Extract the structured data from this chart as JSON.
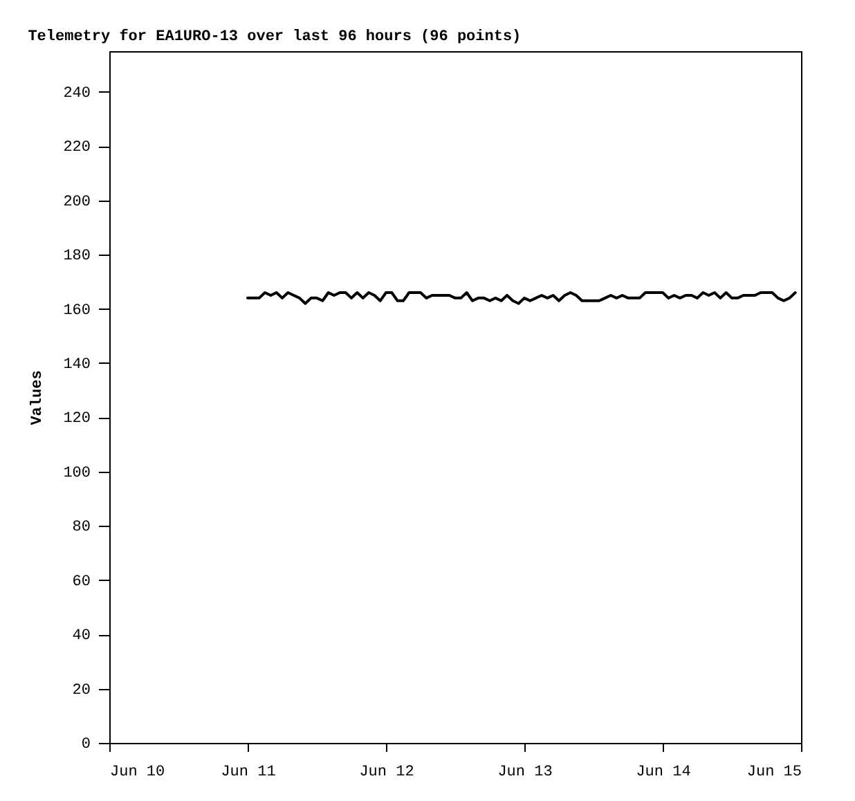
{
  "chart_data": {
    "type": "line",
    "title": "Telemetry for EA1URO-13 over last 96 hours (96 points)",
    "ylabel": "Values",
    "x": [
      "--06-11T00:00",
      "--06-11T01:00",
      "--06-11T02:00",
      "--06-11T03:00",
      "--06-11T04:00",
      "--06-11T05:00",
      "--06-11T06:00",
      "--06-11T07:00",
      "--06-11T08:00",
      "--06-11T09:00",
      "--06-11T10:00",
      "--06-11T11:00",
      "--06-11T12:00",
      "--06-11T13:00",
      "--06-11T14:00",
      "--06-11T15:00",
      "--06-11T16:00",
      "--06-11T17:00",
      "--06-11T18:00",
      "--06-11T19:00",
      "--06-11T20:00",
      "--06-11T21:00",
      "--06-11T22:00",
      "--06-11T23:00",
      "--06-12T00:00",
      "--06-12T01:00",
      "--06-12T02:00",
      "--06-12T03:00",
      "--06-12T04:00",
      "--06-12T05:00",
      "--06-12T06:00",
      "--06-12T07:00",
      "--06-12T08:00",
      "--06-12T09:00",
      "--06-12T10:00",
      "--06-12T11:00",
      "--06-12T12:00",
      "--06-12T13:00",
      "--06-12T14:00",
      "--06-12T15:00",
      "--06-12T16:00",
      "--06-12T17:00",
      "--06-12T18:00",
      "--06-12T19:00",
      "--06-12T20:00",
      "--06-12T21:00",
      "--06-12T22:00",
      "--06-12T23:00",
      "--06-13T00:00",
      "--06-13T01:00",
      "--06-13T02:00",
      "--06-13T03:00",
      "--06-13T04:00",
      "--06-13T05:00",
      "--06-13T06:00",
      "--06-13T07:00",
      "--06-13T08:00",
      "--06-13T09:00",
      "--06-13T10:00",
      "--06-13T11:00",
      "--06-13T12:00",
      "--06-13T13:00",
      "--06-13T14:00",
      "--06-13T15:00",
      "--06-13T16:00",
      "--06-13T17:00",
      "--06-13T18:00",
      "--06-13T19:00",
      "--06-13T20:00",
      "--06-13T21:00",
      "--06-13T22:00",
      "--06-13T23:00",
      "--06-14T00:00",
      "--06-14T01:00",
      "--06-14T02:00",
      "--06-14T03:00",
      "--06-14T04:00",
      "--06-14T05:00",
      "--06-14T06:00",
      "--06-14T07:00",
      "--06-14T08:00",
      "--06-14T09:00",
      "--06-14T10:00",
      "--06-14T11:00",
      "--06-14T12:00",
      "--06-14T13:00",
      "--06-14T14:00",
      "--06-14T15:00",
      "--06-14T16:00",
      "--06-14T17:00",
      "--06-14T18:00",
      "--06-14T19:00",
      "--06-14T20:00",
      "--06-14T21:00",
      "--06-14T22:00",
      "--06-14T23:00"
    ],
    "series": [
      {
        "color": "#000000",
        "values": [
          164,
          164,
          164,
          166,
          165,
          166,
          164,
          166,
          165,
          164,
          162,
          164,
          164,
          163,
          166,
          165,
          166,
          166,
          164,
          166,
          164,
          166,
          165,
          163,
          166,
          166,
          163,
          163,
          166,
          166,
          166,
          164,
          165,
          165,
          165,
          165,
          164,
          164,
          166,
          163,
          164,
          164,
          163,
          164,
          163,
          165,
          163,
          162,
          164,
          163,
          164,
          165,
          164,
          165,
          163,
          165,
          166,
          165,
          163,
          163,
          163,
          163,
          164,
          165,
          164,
          165,
          164,
          164,
          164,
          166,
          166,
          166,
          166,
          164,
          165,
          164,
          165,
          165,
          164,
          166,
          165,
          166,
          164,
          166,
          164,
          164,
          165,
          165,
          165,
          166,
          166,
          166,
          164,
          163,
          164,
          166
        ]
      }
    ],
    "xlim": [
      "--06-10",
      "--06-15"
    ],
    "xticks": [
      {
        "value": "--06-10",
        "label": "Jun 10"
      },
      {
        "value": "--06-11",
        "label": "Jun 11"
      },
      {
        "value": "--06-12",
        "label": "Jun 12"
      },
      {
        "value": "--06-13",
        "label": "Jun 13"
      },
      {
        "value": "--06-14",
        "label": "Jun 14"
      },
      {
        "value": "--06-15",
        "label": "Jun 15"
      }
    ],
    "ylim": [
      0,
      255
    ],
    "yticks": [
      0,
      20,
      40,
      60,
      80,
      100,
      120,
      140,
      160,
      180,
      200,
      220,
      240
    ],
    "grid": false,
    "legend": false,
    "marker": "none",
    "line_style": "solid"
  }
}
